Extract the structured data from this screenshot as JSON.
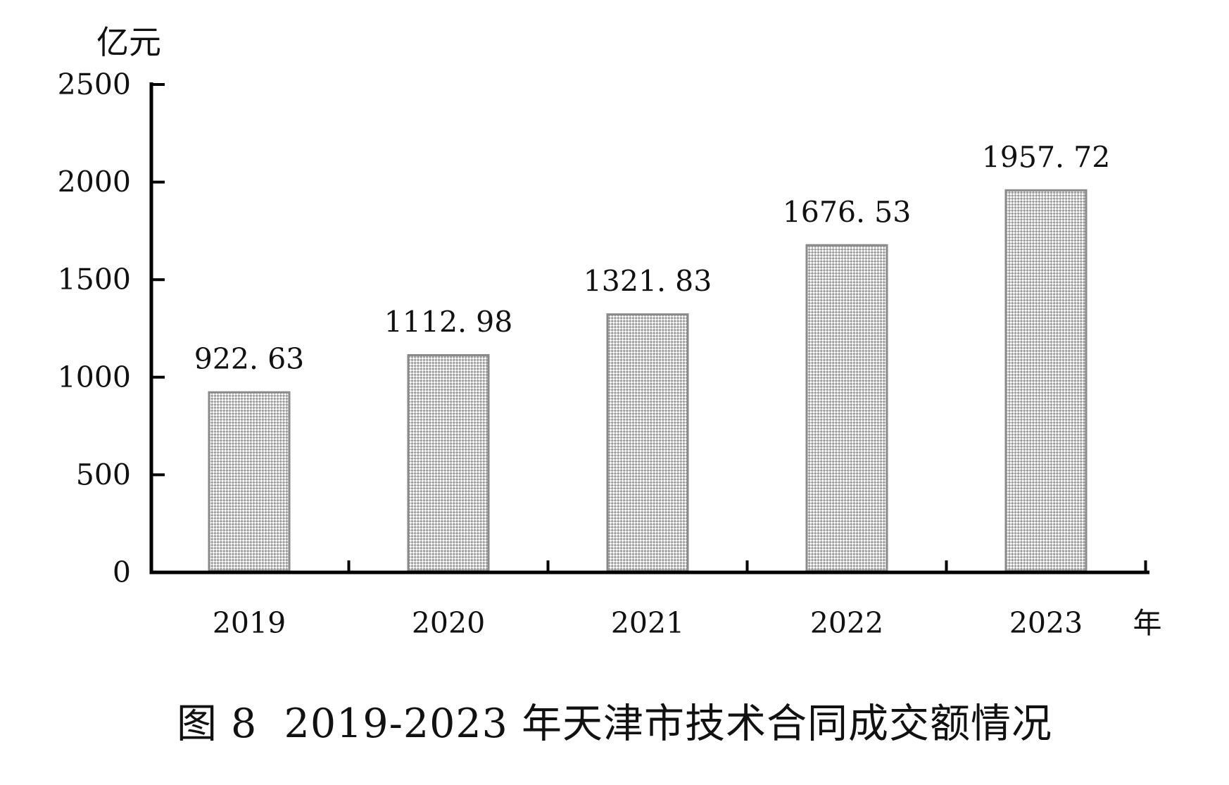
{
  "chart": {
    "caption": "图 8  2019-2023 年天津市技术合同成交额情况"
  },
  "chart_data": {
    "type": "bar",
    "title": "图 8  2019-2023 年天津市技术合同成交额情况",
    "categories": [
      "2019",
      "2020",
      "2021",
      "2022",
      "2023"
    ],
    "values": [
      922.63,
      1112.98,
      1321.83,
      1676.53,
      1957.72
    ],
    "value_labels": [
      "922. 63",
      "1112. 98",
      "1321. 83",
      "1676. 53",
      "1957. 72"
    ],
    "ylabel": "亿元",
    "xlabel": "年",
    "ylim": [
      0,
      2500
    ],
    "y_ticks": [
      0,
      500,
      1000,
      1500,
      2000,
      2500
    ],
    "y_tick_labels": [
      "0",
      "500",
      "1000",
      "1500",
      "2000",
      "2500"
    ],
    "grid": false,
    "legend": false,
    "bar_pattern": "diagonal-checker",
    "pattern_color": "#9a9a9a",
    "bar_border_color": "#8a8a8a",
    "axis_color": "#000000",
    "text_color": "#111111",
    "background_color": "#ffffff"
  }
}
